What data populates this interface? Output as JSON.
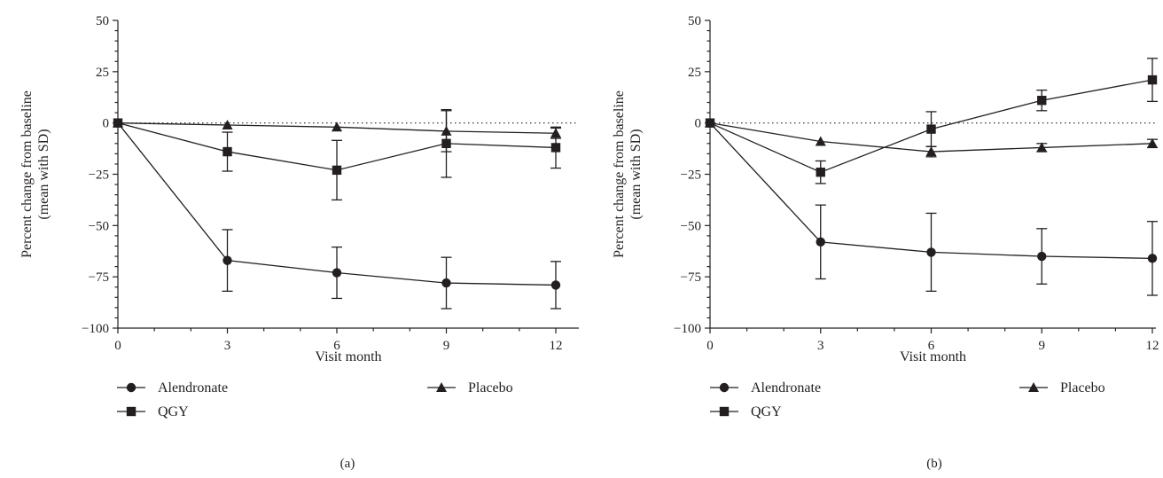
{
  "colors": {
    "ink": "#231f20",
    "background": "#ffffff"
  },
  "chart_data": [
    {
      "type": "line",
      "panel_label": "(a)",
      "xlabel": "Visit month",
      "ylabel": [
        "Percent change from baseline",
        "(mean with SD)"
      ],
      "x": [
        0,
        3,
        6,
        9,
        12
      ],
      "xticks": [
        "0",
        "3",
        "6",
        "9",
        "12"
      ],
      "ylim": [
        -100,
        50
      ],
      "yticks": [
        "50",
        "25",
        "0",
        "−25",
        "−50",
        "−75",
        "−100"
      ],
      "reference_line_y": 0,
      "error_bars": "SD",
      "legend": {
        "placement": "bottom-left",
        "entries": [
          "Alendronate",
          "Placebo",
          "QGY"
        ]
      },
      "series": [
        {
          "name": "Alendronate",
          "marker": "circle",
          "values": [
            0,
            -67,
            -73,
            -78,
            -79
          ],
          "sd": [
            0,
            15,
            12.5,
            12.5,
            11.5
          ]
        },
        {
          "name": "QGY",
          "marker": "square",
          "values": [
            0,
            -14,
            -23,
            -10,
            -12
          ],
          "sd": [
            0,
            9.5,
            14.5,
            16.5,
            10
          ]
        },
        {
          "name": "Placebo",
          "marker": "triangle",
          "values": [
            0,
            -1,
            -2,
            -4,
            -5
          ],
          "sd": [
            0,
            0,
            0,
            10,
            2.5
          ]
        }
      ]
    },
    {
      "type": "line",
      "panel_label": "(b)",
      "xlabel": "Visit month",
      "ylabel": [
        "Percent change from baseline",
        "(mean with SD)"
      ],
      "x": [
        0,
        3,
        6,
        9,
        12
      ],
      "xticks": [
        "0",
        "3",
        "6",
        "9",
        "12"
      ],
      "ylim": [
        -100,
        50
      ],
      "yticks": [
        "50",
        "25",
        "0",
        "−25",
        "−50",
        "−75",
        "−100"
      ],
      "reference_line_y": 0,
      "error_bars": "SD",
      "legend": {
        "placement": "bottom-left",
        "entries": [
          "Alendronate",
          "Placebo",
          "QGY"
        ]
      },
      "series": [
        {
          "name": "Alendronate",
          "marker": "circle",
          "values": [
            0,
            -58,
            -63,
            -65,
            -66
          ],
          "sd": [
            0,
            18,
            19,
            13.5,
            18
          ]
        },
        {
          "name": "QGY",
          "marker": "square",
          "values": [
            0,
            -24,
            -3,
            11,
            21
          ],
          "sd": [
            0,
            5.5,
            8.5,
            5,
            10.5
          ]
        },
        {
          "name": "Placebo",
          "marker": "triangle",
          "values": [
            0,
            -9,
            -14,
            -12,
            -10
          ],
          "sd": [
            0,
            0,
            2.5,
            2,
            2
          ]
        }
      ]
    }
  ]
}
